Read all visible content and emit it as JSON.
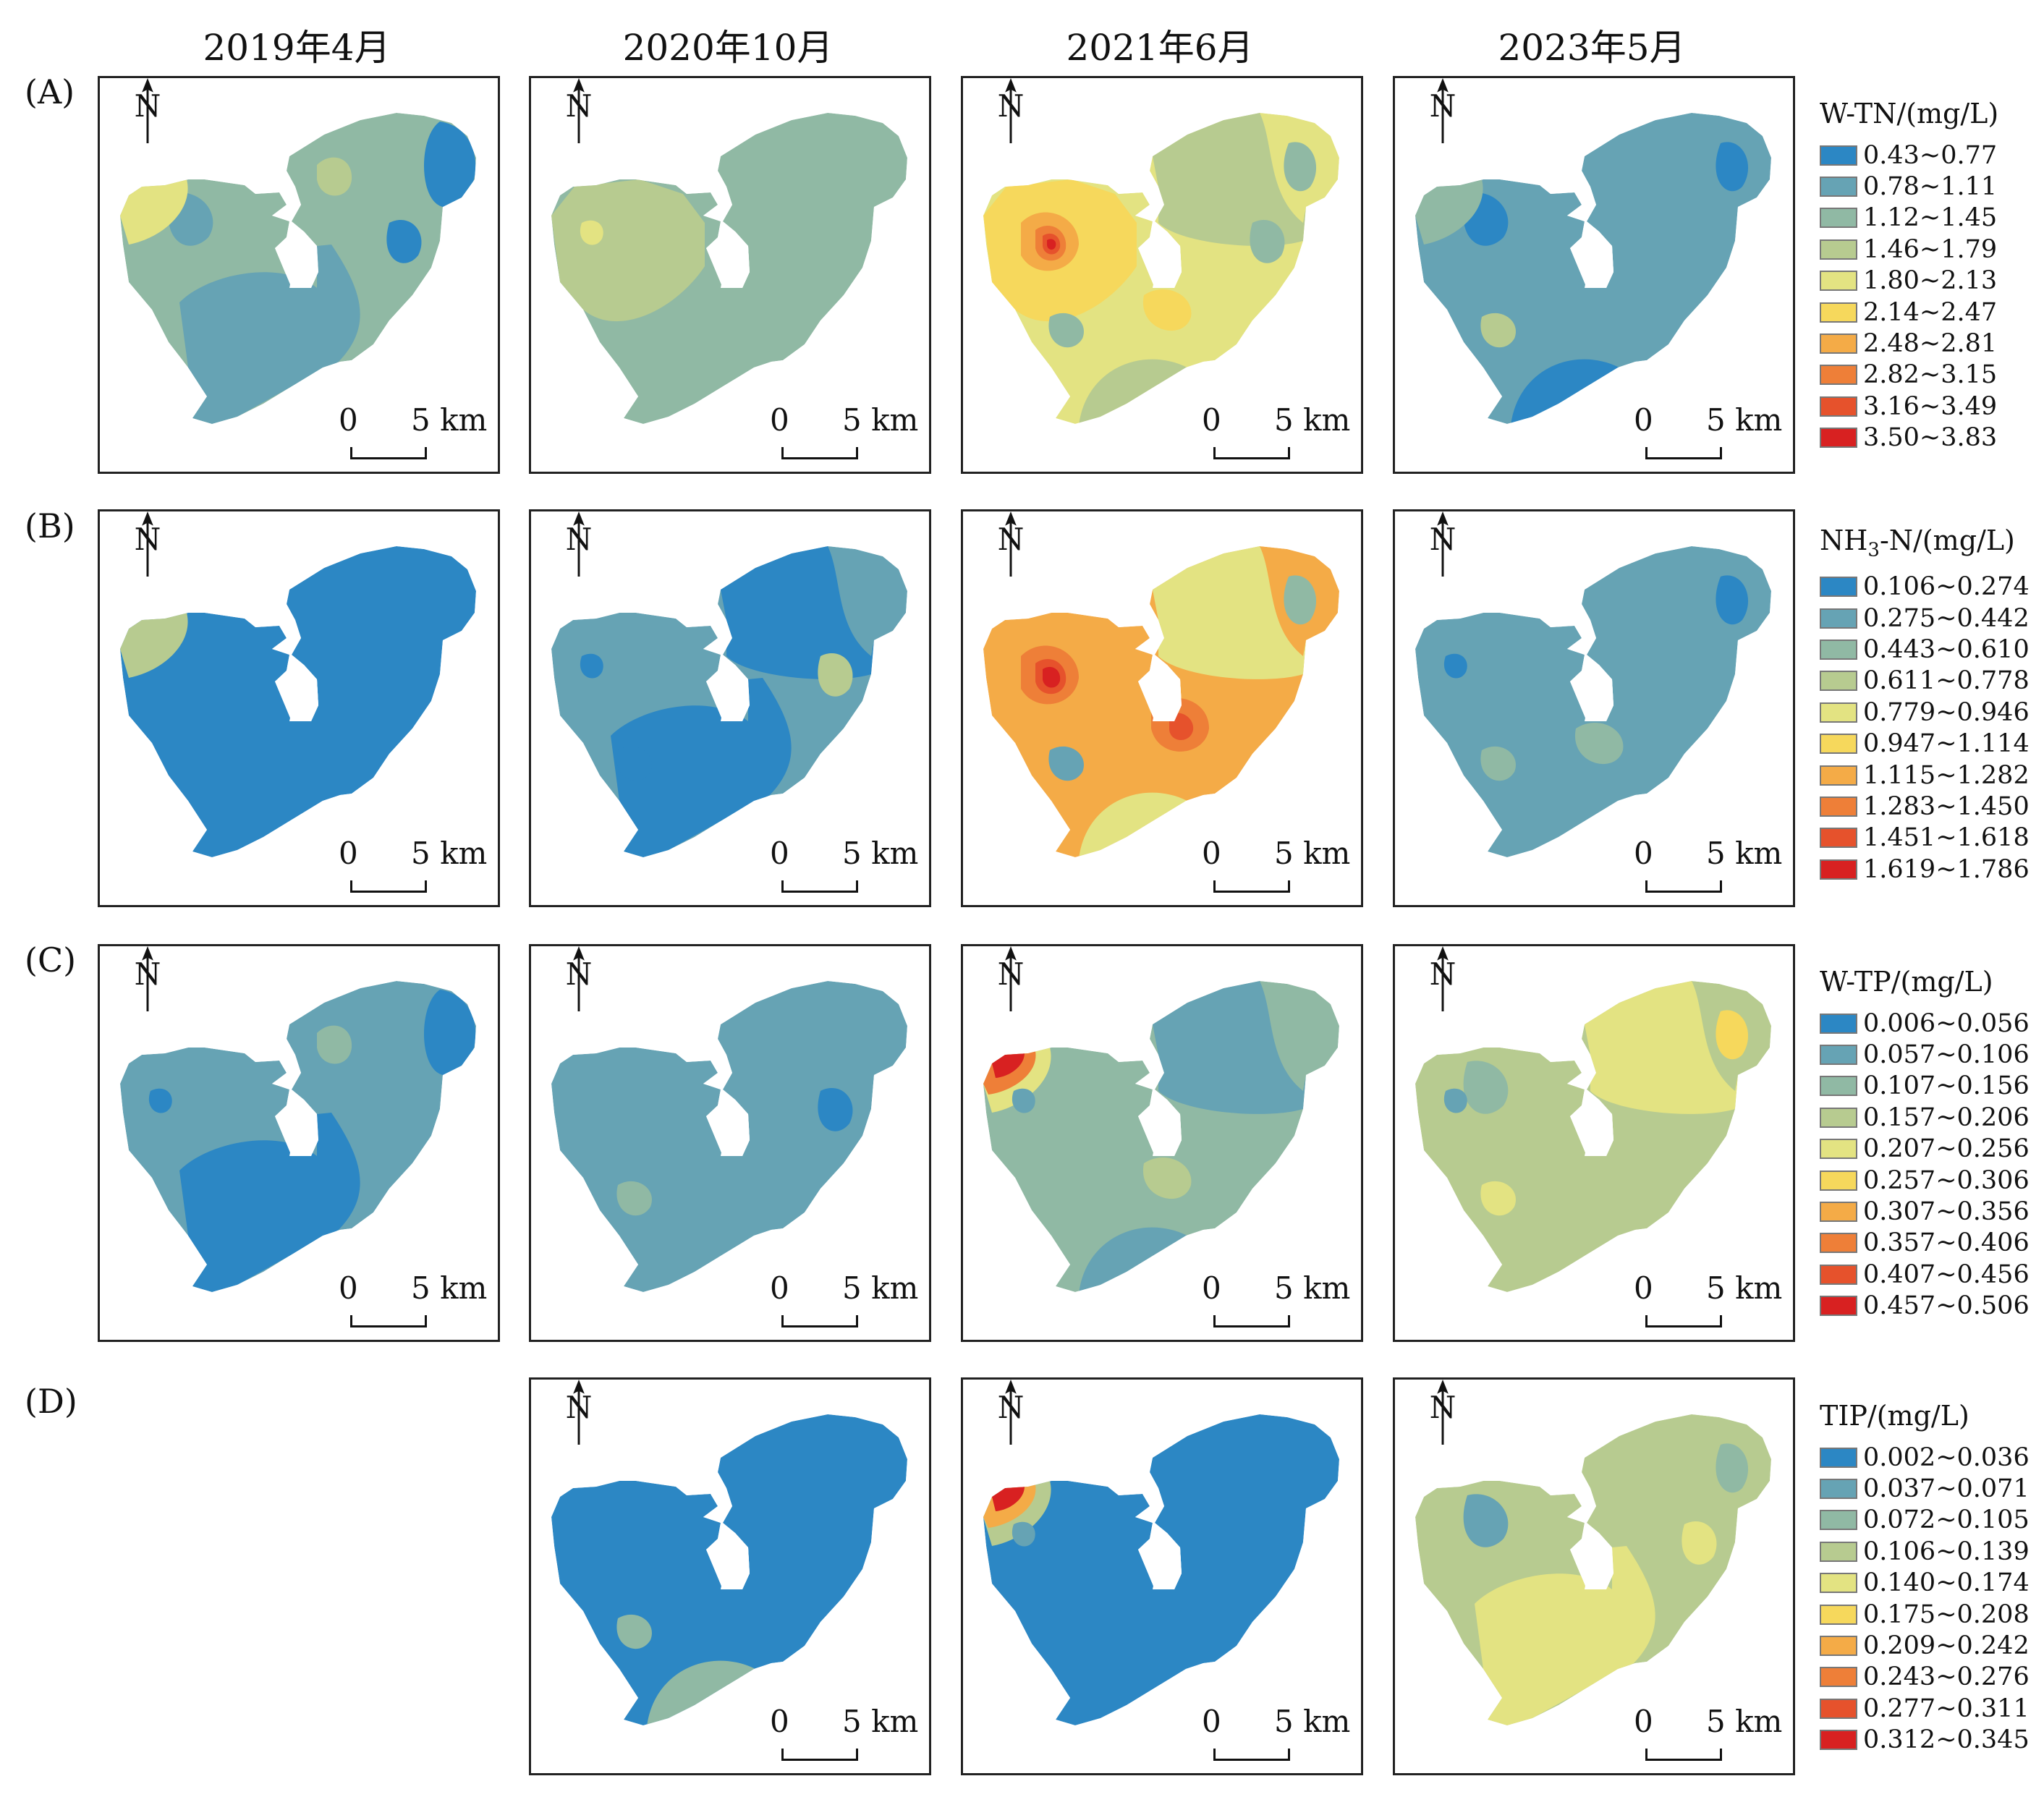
{
  "columns": [
    "2019年4月",
    "2020年10月",
    "2021年6月",
    "2023年5月"
  ],
  "compass_label": "N",
  "scale": {
    "zero": "0",
    "length": "5 km"
  },
  "palette": [
    "#2c87c4",
    "#66a3b4",
    "#90b9a4",
    "#b7cb90",
    "#e3e382",
    "#f6d85c",
    "#f4ab47",
    "#ee7f38",
    "#e6522c",
    "#d82121"
  ],
  "rows": [
    {
      "label": "(A)",
      "legend_title": "W-TN/(mg/L)",
      "classes": [
        "0.43~0.77",
        "0.78~1.11",
        "1.12~1.45",
        "1.46~1.79",
        "1.80~2.13",
        "2.14~2.47",
        "2.48~2.81",
        "2.82~3.15",
        "3.16~3.49",
        "3.50~3.83"
      ]
    },
    {
      "label": "(B)",
      "legend_title": "NH3-N/(mg/L)",
      "classes": [
        "0.106~0.274",
        "0.275~0.442",
        "0.443~0.610",
        "0.611~0.778",
        "0.779~0.946",
        "0.947~1.114",
        "1.115~1.282",
        "1.283~1.450",
        "1.451~1.618",
        "1.619~1.786"
      ]
    },
    {
      "label": "(C)",
      "legend_title": "W-TP/(mg/L)",
      "classes": [
        "0.006~0.056",
        "0.057~0.106",
        "0.107~0.156",
        "0.157~0.206",
        "0.207~0.256",
        "0.257~0.306",
        "0.307~0.356",
        "0.357~0.406",
        "0.407~0.456",
        "0.457~0.506"
      ]
    },
    {
      "label": "(D)",
      "legend_title": "TIP/(mg/L)",
      "classes": [
        "0.002~0.036",
        "0.037~0.071",
        "0.072~0.105",
        "0.106~0.139",
        "0.140~0.174",
        "0.175~0.208",
        "0.209~0.242",
        "0.243~0.276",
        "0.277~0.311",
        "0.312~0.345"
      ]
    }
  ],
  "maps": [
    {
      "row": 0,
      "col": 0,
      "base": 2,
      "overlays": [
        {
          "shape": "big-se",
          "cls": 1
        },
        {
          "shape": "big-e",
          "cls": 0
        },
        {
          "shape": "big-nw-spot",
          "cls": 1
        },
        {
          "shape": "big-tip",
          "cls": 4
        },
        {
          "shape": "sm-n",
          "cls": 3
        },
        {
          "shape": "sm-e",
          "cls": 0
        }
      ]
    },
    {
      "row": 0,
      "col": 1,
      "base": 2,
      "overlays": [
        {
          "shape": "big-w",
          "cls": 3
        },
        {
          "shape": "sm-nw",
          "cls": 4
        }
      ]
    },
    {
      "row": 0,
      "col": 2,
      "base": 4,
      "overlays": [
        {
          "shape": "big-w",
          "cls": 5
        },
        {
          "shape": "big-ne",
          "cls": 3
        },
        {
          "shape": "big-s",
          "cls": 3
        },
        {
          "shape": "sm-c",
          "cls": 5
        },
        {
          "shape": "sm-sw",
          "cls": 2
        },
        {
          "shape": "sm-e",
          "cls": 2
        },
        {
          "shape": "sm-ne",
          "cls": 2
        },
        {
          "shape": "hot-w1",
          "cls": 6
        },
        {
          "shape": "hot-w2",
          "cls": 7
        },
        {
          "shape": "hot-w3",
          "cls": 8
        },
        {
          "shape": "hot-w4",
          "cls": 9
        }
      ]
    },
    {
      "row": 0,
      "col": 3,
      "base": 1,
      "overlays": [
        {
          "shape": "big-nw-spot",
          "cls": 0
        },
        {
          "shape": "sm-ne",
          "cls": 0
        },
        {
          "shape": "big-s",
          "cls": 0
        },
        {
          "shape": "sm-sw",
          "cls": 3
        },
        {
          "shape": "big-tip",
          "cls": 2
        }
      ]
    },
    {
      "row": 1,
      "col": 0,
      "base": 0,
      "overlays": [
        {
          "shape": "big-tip",
          "cls": 3
        }
      ]
    },
    {
      "row": 1,
      "col": 1,
      "base": 1,
      "overlays": [
        {
          "shape": "big-se",
          "cls": 0
        },
        {
          "shape": "big-ne",
          "cls": 0
        },
        {
          "shape": "sm-e",
          "cls": 3
        },
        {
          "shape": "sm-nw",
          "cls": 0
        },
        {
          "shape": "sm-sw",
          "cls": 0
        }
      ]
    },
    {
      "row": 1,
      "col": 2,
      "base": 6,
      "overlays": [
        {
          "shape": "big-ne",
          "cls": 4
        },
        {
          "shape": "big-s",
          "cls": 4
        },
        {
          "shape": "sm-ne",
          "cls": 2
        },
        {
          "shape": "sm-sw",
          "cls": 1
        },
        {
          "shape": "hot-w1",
          "cls": 7
        },
        {
          "shape": "hot-w2",
          "cls": 8
        },
        {
          "shape": "hot-w3",
          "cls": 9
        },
        {
          "shape": "hot-e1",
          "cls": 7
        },
        {
          "shape": "hot-e2",
          "cls": 8
        }
      ]
    },
    {
      "row": 1,
      "col": 3,
      "base": 1,
      "overlays": [
        {
          "shape": "sm-nw",
          "cls": 0
        },
        {
          "shape": "sm-ne",
          "cls": 0
        },
        {
          "shape": "sm-sw",
          "cls": 2
        },
        {
          "shape": "sm-c",
          "cls": 2
        }
      ]
    },
    {
      "row": 2,
      "col": 0,
      "base": 1,
      "overlays": [
        {
          "shape": "big-se",
          "cls": 0
        },
        {
          "shape": "big-e",
          "cls": 0
        },
        {
          "shape": "sm-n",
          "cls": 2
        },
        {
          "shape": "sm-nw",
          "cls": 0
        }
      ]
    },
    {
      "row": 2,
      "col": 1,
      "base": 1,
      "overlays": [
        {
          "shape": "sm-e",
          "cls": 0
        },
        {
          "shape": "sm-sw",
          "cls": 2
        }
      ]
    },
    {
      "row": 2,
      "col": 2,
      "base": 2,
      "overlays": [
        {
          "shape": "big-ne",
          "cls": 1
        },
        {
          "shape": "big-tip",
          "cls": 4
        },
        {
          "shape": "big-s",
          "cls": 1
        },
        {
          "shape": "sm-c",
          "cls": 3
        },
        {
          "shape": "sm-nw",
          "cls": 1
        },
        {
          "shape": "hot-tip1",
          "cls": 7
        },
        {
          "shape": "hot-tip2",
          "cls": 9
        }
      ]
    },
    {
      "row": 2,
      "col": 3,
      "base": 3,
      "overlays": [
        {
          "shape": "big-ne",
          "cls": 4
        },
        {
          "shape": "big-nw-spot",
          "cls": 2
        },
        {
          "shape": "sm-ne",
          "cls": 5
        },
        {
          "shape": "sm-sw",
          "cls": 4
        },
        {
          "shape": "sm-nw",
          "cls": 1
        }
      ]
    },
    {
      "row": 3,
      "col": 1,
      "base": 0,
      "overlays": [
        {
          "shape": "sm-sw",
          "cls": 2
        },
        {
          "shape": "big-s",
          "cls": 2
        }
      ]
    },
    {
      "row": 3,
      "col": 2,
      "base": 0,
      "overlays": [
        {
          "shape": "big-tip",
          "cls": 3
        },
        {
          "shape": "sm-nw",
          "cls": 1
        },
        {
          "shape": "hot-tip1",
          "cls": 6
        },
        {
          "shape": "hot-tip2",
          "cls": 9
        }
      ]
    },
    {
      "row": 3,
      "col": 3,
      "base": 3,
      "overlays": [
        {
          "shape": "big-se",
          "cls": 4
        },
        {
          "shape": "big-nw-spot",
          "cls": 1
        },
        {
          "shape": "sm-e",
          "cls": 4
        },
        {
          "shape": "sm-ne",
          "cls": 2
        }
      ]
    }
  ]
}
